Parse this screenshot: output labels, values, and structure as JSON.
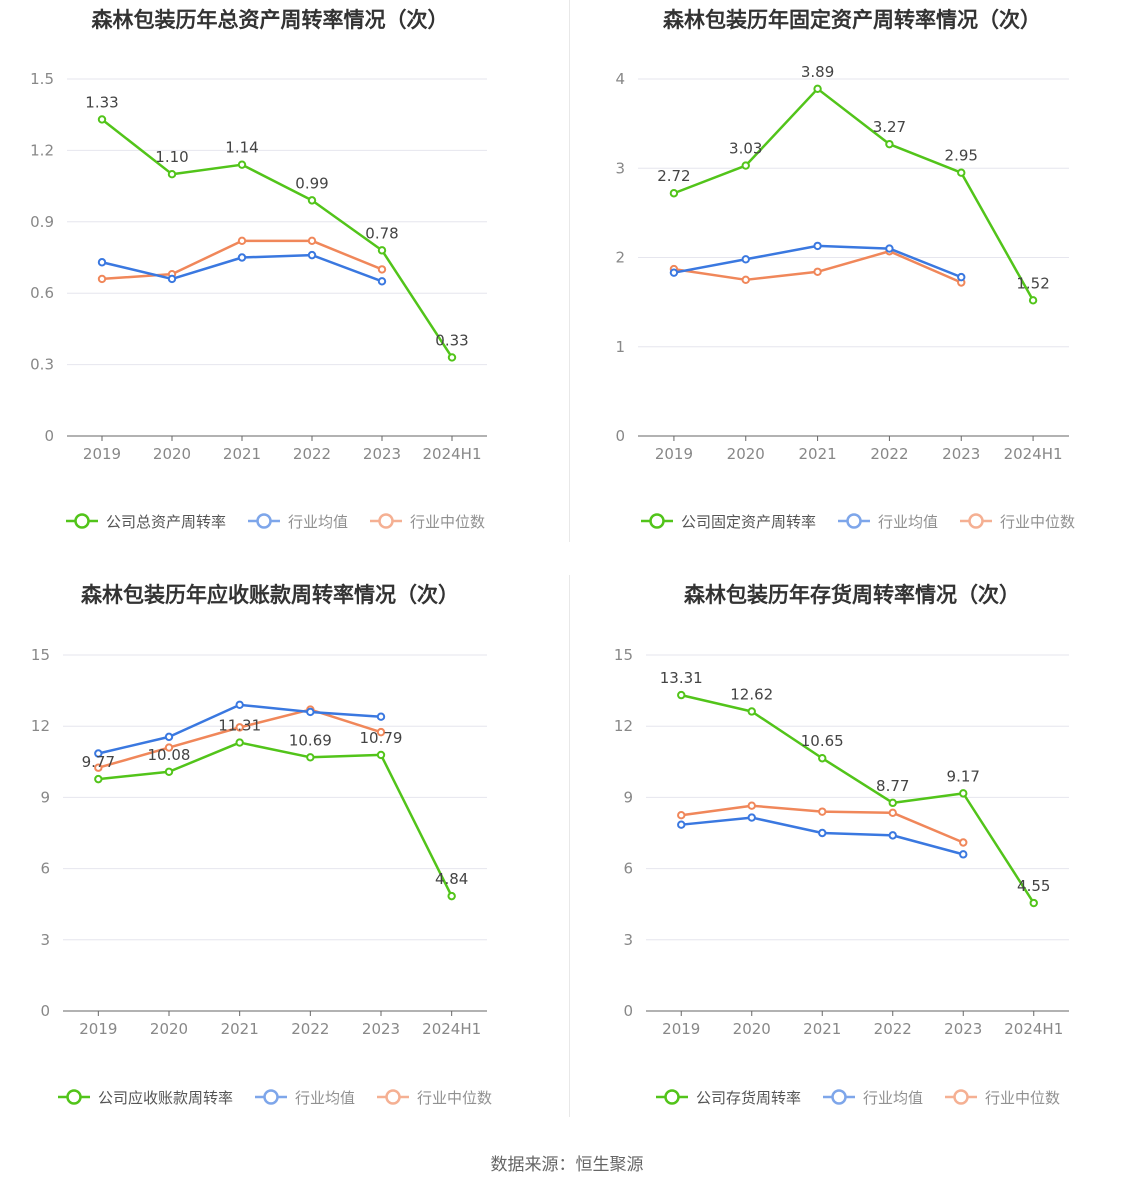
{
  "colors": {
    "company": "#52c41a",
    "avg": "#3a78e0",
    "median": "#f0875a",
    "grid": "#e6e6ee",
    "axis": "#666666"
  },
  "source_text": "数据来源：恒生聚源",
  "chart_data": [
    {
      "type": "line",
      "title": "森林包装历年总资产周转率情况（次）",
      "categories": [
        "2019",
        "2020",
        "2021",
        "2022",
        "2023",
        "2024H1"
      ],
      "yticks": [
        "0",
        "0.3",
        "0.6",
        "0.9",
        "1.2",
        "1.5"
      ],
      "ylim": [
        0,
        1.5
      ],
      "grid": true,
      "legend_position": "bottom",
      "series": [
        {
          "name": "公司总资产周转率",
          "key": "company",
          "values": [
            1.33,
            1.1,
            1.14,
            0.99,
            0.78,
            0.33
          ],
          "labels": [
            "1.33",
            "1.10",
            "1.14",
            "0.99",
            "0.78",
            "0.33"
          ]
        },
        {
          "name": "行业均值",
          "key": "avg",
          "values": [
            0.73,
            0.66,
            0.75,
            0.76,
            0.65,
            null
          ]
        },
        {
          "name": "行业中位数",
          "key": "median",
          "values": [
            0.66,
            0.68,
            0.82,
            0.82,
            0.7,
            null
          ]
        }
      ]
    },
    {
      "type": "line",
      "title": "森林包装历年固定资产周转率情况（次）",
      "categories": [
        "2019",
        "2020",
        "2021",
        "2022",
        "2023",
        "2024H1"
      ],
      "yticks": [
        "0",
        "1",
        "2",
        "3",
        "4"
      ],
      "ylim": [
        0,
        4
      ],
      "grid": true,
      "legend_position": "bottom",
      "series": [
        {
          "name": "公司固定资产周转率",
          "key": "company",
          "values": [
            2.72,
            3.03,
            3.89,
            3.27,
            2.95,
            1.52
          ],
          "labels": [
            "2.72",
            "3.03",
            "3.89",
            "3.27",
            "2.95",
            "1.52"
          ]
        },
        {
          "name": "行业均值",
          "key": "avg",
          "values": [
            1.83,
            1.98,
            2.13,
            2.1,
            1.78,
            null
          ]
        },
        {
          "name": "行业中位数",
          "key": "median",
          "values": [
            1.87,
            1.75,
            1.84,
            2.07,
            1.72,
            null
          ]
        }
      ]
    },
    {
      "type": "line",
      "title": "森林包装历年应收账款周转率情况（次）",
      "categories": [
        "2019",
        "2020",
        "2021",
        "2022",
        "2023",
        "2024H1"
      ],
      "yticks": [
        "0",
        "3",
        "6",
        "9",
        "12",
        "15"
      ],
      "ylim": [
        0,
        15
      ],
      "grid": true,
      "legend_position": "bottom",
      "series": [
        {
          "name": "公司应收账款周转率",
          "key": "company",
          "values": [
            9.77,
            10.08,
            11.31,
            10.69,
            10.79,
            4.84
          ],
          "labels": [
            "9.77",
            "10.08",
            "11.31",
            "10.69",
            "10.79",
            "4.84"
          ]
        },
        {
          "name": "行业均值",
          "key": "avg",
          "values": [
            10.85,
            11.55,
            12.9,
            12.6,
            12.4,
            null
          ]
        },
        {
          "name": "行业中位数",
          "key": "median",
          "values": [
            10.25,
            11.1,
            11.95,
            12.7,
            11.75,
            null
          ]
        }
      ]
    },
    {
      "type": "line",
      "title": "森林包装历年存货周转率情况（次）",
      "categories": [
        "2019",
        "2020",
        "2021",
        "2022",
        "2023",
        "2024H1"
      ],
      "yticks": [
        "0",
        "3",
        "6",
        "9",
        "12",
        "15"
      ],
      "ylim": [
        0,
        15
      ],
      "grid": true,
      "legend_position": "bottom",
      "series": [
        {
          "name": "公司存货周转率",
          "key": "company",
          "values": [
            13.31,
            12.62,
            10.65,
            8.77,
            9.17,
            4.55
          ],
          "labels": [
            "13.31",
            "12.62",
            "10.65",
            "8.77",
            "9.17",
            "4.55"
          ]
        },
        {
          "name": "行业均值",
          "key": "avg",
          "values": [
            7.85,
            8.15,
            7.5,
            7.4,
            6.6,
            null
          ]
        },
        {
          "name": "行业中位数",
          "key": "median",
          "values": [
            8.25,
            8.65,
            8.4,
            8.35,
            7.1,
            null
          ]
        }
      ]
    }
  ]
}
